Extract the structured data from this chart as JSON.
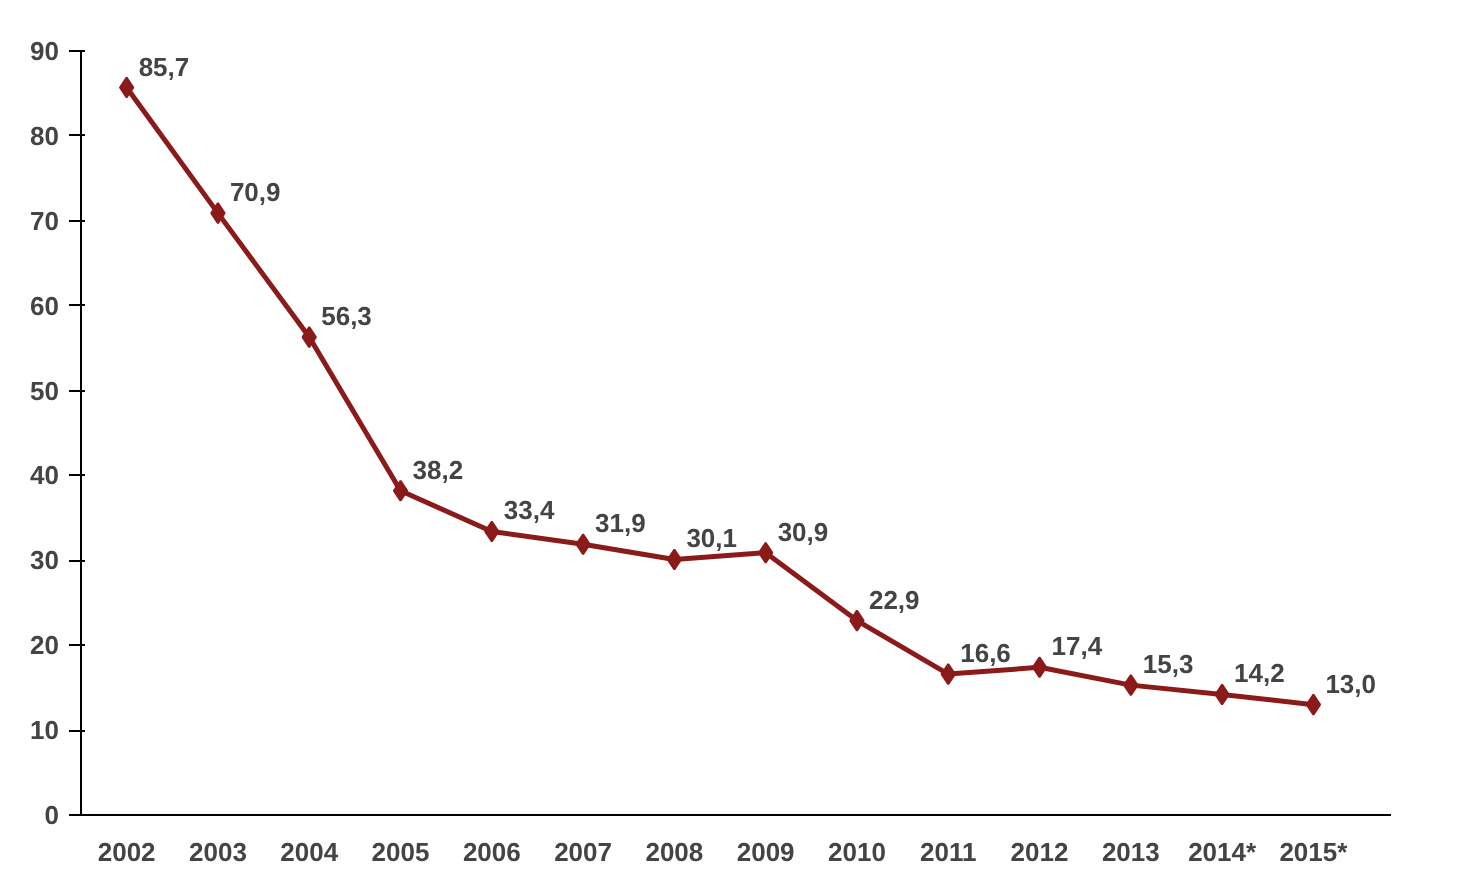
{
  "chart_data": {
    "type": "line",
    "categories": [
      "2002",
      "2003",
      "2004",
      "2005",
      "2006",
      "2007",
      "2008",
      "2009",
      "2010",
      "2011",
      "2012",
      "2013",
      "2014*",
      "2015*"
    ],
    "series": [
      {
        "color": "#8b1a1a",
        "values": [
          85.7,
          70.9,
          56.3,
          38.2,
          33.4,
          31.9,
          30.1,
          30.9,
          22.9,
          16.6,
          17.4,
          15.3,
          14.2,
          13.0
        ]
      }
    ],
    "value_labels": [
      "85,7",
      "70,9",
      "56,3",
      "38,2",
      "33,4",
      "31,9",
      "30,1",
      "30,9",
      "22,9",
      "16,6",
      "17,4",
      "15,3",
      "14,2",
      "13,0"
    ],
    "ylim": [
      0,
      90
    ],
    "yticks": [
      0,
      10,
      20,
      30,
      40,
      50,
      60,
      70,
      80,
      90
    ],
    "grid": false,
    "marker": "diamond",
    "line_style": "solid"
  }
}
